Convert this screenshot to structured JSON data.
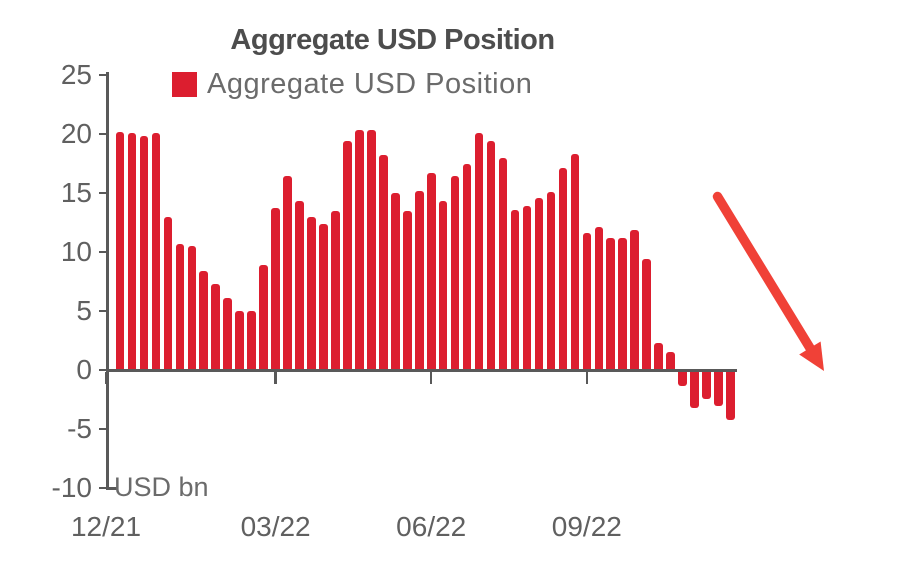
{
  "title": "Aggregate USD Position",
  "legend": {
    "label": "Aggregate USD Position"
  },
  "axis_note": "USD bn",
  "colors": {
    "bar": "#dc1e2f",
    "arrow": "#f04137",
    "axis": "#595959",
    "text": "#606060",
    "title": "#4d4d4d"
  },
  "annotations": {
    "arrow": {
      "shape": "diagonal-arrow",
      "direction": "down-right",
      "meaning": "declining trend"
    }
  },
  "chart_data": {
    "type": "bar",
    "title": "Aggregate USD Position",
    "series_name": "Aggregate USD Position",
    "ylabel": "USD bn",
    "ylim": [
      -10,
      25
    ],
    "y_ticks": [
      25,
      20,
      15,
      10,
      5,
      0,
      -5,
      -10
    ],
    "x_tick_labels": [
      "12/21",
      "03/22",
      "06/22",
      "09/22"
    ],
    "x_tick_bar_index": [
      0,
      13,
      26,
      39
    ],
    "frequency": "weekly",
    "grid": false,
    "legend_position": "top",
    "values": [
      20.2,
      20.1,
      19.8,
      20.1,
      13.0,
      10.7,
      10.5,
      8.4,
      7.3,
      6.1,
      5.0,
      5.0,
      8.9,
      13.7,
      16.4,
      14.3,
      13.0,
      12.4,
      13.5,
      19.4,
      20.3,
      20.3,
      18.2,
      15.0,
      13.5,
      15.2,
      16.7,
      14.3,
      16.4,
      17.5,
      20.1,
      19.4,
      18.0,
      13.6,
      13.9,
      14.6,
      15.1,
      17.1,
      18.3,
      11.6,
      12.1,
      11.2,
      11.2,
      11.9,
      9.4,
      2.3,
      1.5,
      -1.4,
      -3.3,
      -2.5,
      -3.1,
      -4.3
    ]
  }
}
